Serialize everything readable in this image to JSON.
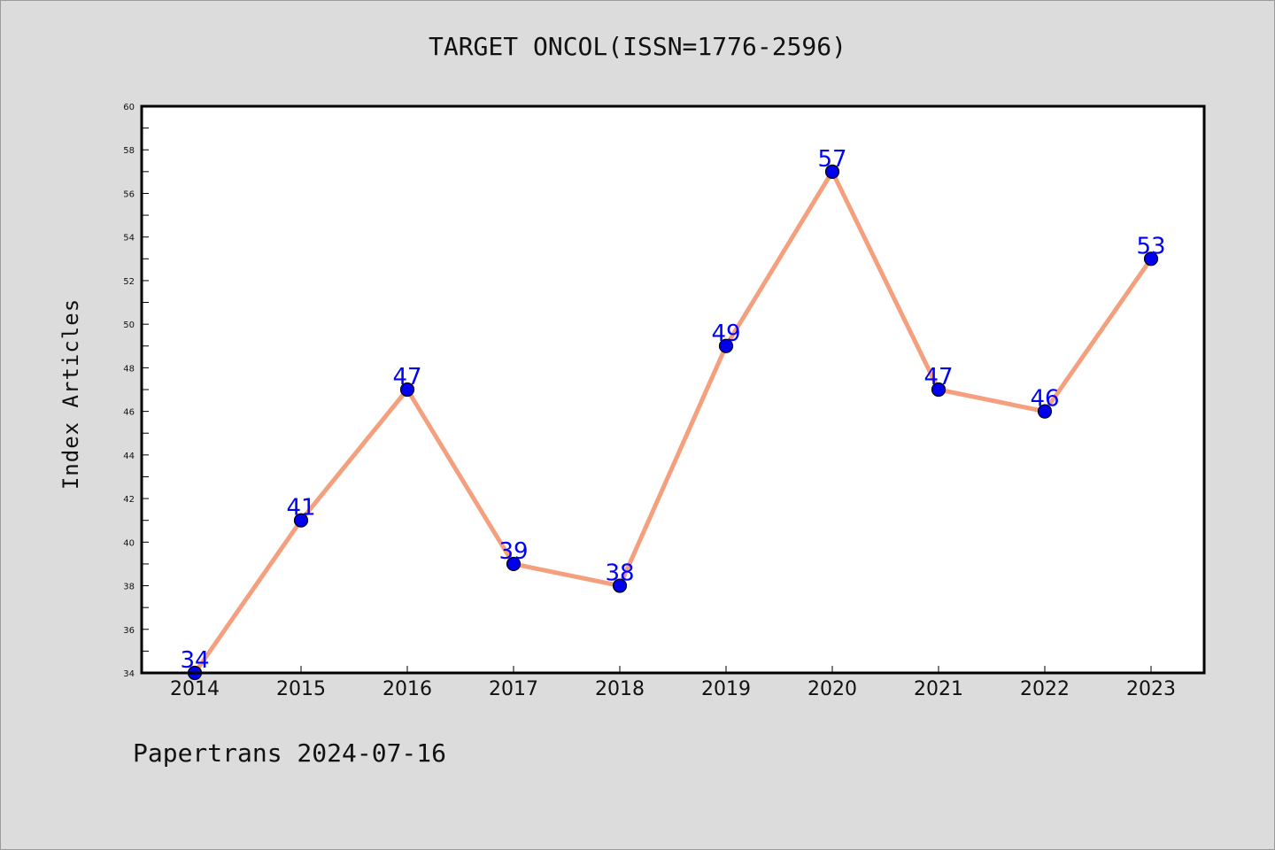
{
  "footer": "Papertrans 2024-07-16",
  "chart_data": {
    "type": "line",
    "title": "TARGET ONCOL(ISSN=1776-2596)",
    "xlabel": "",
    "ylabel": "Index Articles",
    "categories": [
      "2014",
      "2015",
      "2016",
      "2017",
      "2018",
      "2019",
      "2020",
      "2021",
      "2022",
      "2023"
    ],
    "series": [
      {
        "values": [
          34,
          41,
          47,
          39,
          38,
          49,
          57,
          47,
          46,
          53
        ]
      }
    ],
    "ylim": [
      34,
      60
    ],
    "yticks": [
      34,
      36,
      38,
      40,
      42,
      44,
      46,
      48,
      50,
      52,
      54,
      56,
      58,
      60
    ],
    "grid": false,
    "colors": {
      "line": "#f4a07e",
      "marker": "#0000ee",
      "marker_edge": "#000000",
      "data_label": "#0000ff",
      "plot_background": "#ffffff",
      "figure_background": "#dcdcdc"
    }
  }
}
